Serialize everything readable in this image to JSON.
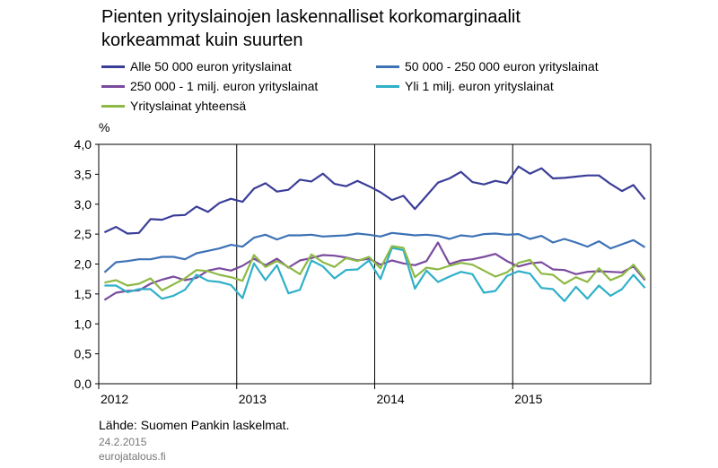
{
  "chart_data": {
    "type": "line",
    "title_line1": "Pienten yrityslainojen laskennalliset korkomarginaalit",
    "title_line2": "korkeammat kuin suurten",
    "ylabel": "%",
    "ylim": [
      0,
      4
    ],
    "yticks": [
      "0,0",
      "0,5",
      "1,0",
      "1,5",
      "2,0",
      "2,5",
      "3,0",
      "3,5",
      "4,0"
    ],
    "xticks": [
      "2012",
      "2013",
      "2014",
      "2015"
    ],
    "x_start": "2012-01",
    "x_end": "2015-12",
    "grid": "vertical year lines",
    "legend_position": "top",
    "series": [
      {
        "name": "Alle 50 000 euron yrityslainat",
        "color": "#3b3e98",
        "values": [
          2.53,
          2.62,
          2.51,
          2.52,
          2.75,
          2.74,
          2.81,
          2.82,
          2.96,
          2.87,
          3.02,
          3.09,
          3.04,
          3.26,
          3.35,
          3.21,
          3.24,
          3.41,
          3.38,
          3.51,
          3.34,
          3.3,
          3.39,
          3.3,
          3.2,
          3.07,
          3.14,
          2.92,
          3.14,
          3.36,
          3.43,
          3.54,
          3.37,
          3.33,
          3.39,
          3.35,
          3.63,
          3.51,
          3.6,
          3.43,
          3.44,
          3.46,
          3.48,
          3.48,
          3.34,
          3.22,
          3.32,
          3.08
        ]
      },
      {
        "name": "50 000 - 250 000 euron yrityslainat",
        "color": "#3d72b5",
        "values": [
          1.86,
          2.03,
          2.05,
          2.08,
          2.08,
          2.12,
          2.12,
          2.08,
          2.18,
          2.22,
          2.26,
          2.32,
          2.29,
          2.44,
          2.49,
          2.41,
          2.48,
          2.48,
          2.49,
          2.46,
          2.47,
          2.48,
          2.51,
          2.49,
          2.46,
          2.52,
          2.5,
          2.48,
          2.49,
          2.47,
          2.42,
          2.48,
          2.46,
          2.5,
          2.51,
          2.49,
          2.5,
          2.42,
          2.47,
          2.36,
          2.42,
          2.36,
          2.29,
          2.38,
          2.26,
          2.33,
          2.4,
          2.28
        ]
      },
      {
        "name": "250 000 - 1 milj. euron yrityslainat",
        "color": "#7a4b9e",
        "values": [
          1.4,
          1.52,
          1.55,
          1.56,
          1.67,
          1.74,
          1.79,
          1.73,
          1.77,
          1.89,
          1.93,
          1.89,
          1.97,
          2.09,
          1.98,
          2.09,
          1.94,
          2.06,
          2.1,
          2.15,
          2.14,
          2.11,
          2.06,
          2.09,
          1.99,
          2.06,
          2.01,
          1.98,
          2.05,
          2.36,
          2.0,
          2.06,
          2.08,
          2.12,
          2.17,
          2.05,
          1.96,
          2.01,
          2.03,
          1.91,
          1.9,
          1.83,
          1.87,
          1.88,
          1.87,
          1.86,
          1.96,
          1.73
        ]
      },
      {
        "name": "Yli 1 milj. euron yrityslainat",
        "color": "#2fb0c8",
        "values": [
          1.64,
          1.64,
          1.53,
          1.58,
          1.58,
          1.42,
          1.47,
          1.57,
          1.82,
          1.72,
          1.7,
          1.65,
          1.43,
          2.01,
          1.73,
          1.98,
          1.51,
          1.57,
          2.06,
          1.96,
          1.76,
          1.9,
          1.91,
          2.06,
          1.75,
          2.27,
          2.23,
          1.59,
          1.89,
          1.7,
          1.79,
          1.87,
          1.83,
          1.52,
          1.55,
          1.8,
          1.88,
          1.84,
          1.6,
          1.58,
          1.38,
          1.62,
          1.42,
          1.64,
          1.47,
          1.58,
          1.82,
          1.6
        ]
      },
      {
        "name": "Yrityslainat yhteensä",
        "color": "#8db944",
        "values": [
          1.69,
          1.73,
          1.64,
          1.67,
          1.76,
          1.56,
          1.66,
          1.76,
          1.9,
          1.88,
          1.82,
          1.78,
          1.72,
          2.15,
          1.95,
          2.05,
          1.95,
          1.83,
          2.16,
          2.03,
          1.95,
          2.1,
          2.05,
          2.12,
          1.93,
          2.3,
          2.27,
          1.78,
          1.94,
          1.91,
          1.97,
          2.02,
          1.99,
          1.89,
          1.79,
          1.86,
          2.02,
          2.07,
          1.84,
          1.82,
          1.67,
          1.78,
          1.7,
          1.93,
          1.73,
          1.81,
          1.99,
          1.75
        ]
      }
    ]
  },
  "source_text": "Lähde: Suomen Pankin laskelmat.",
  "date_text": "24.2.2015",
  "site_text": "eurojatalous.fi"
}
